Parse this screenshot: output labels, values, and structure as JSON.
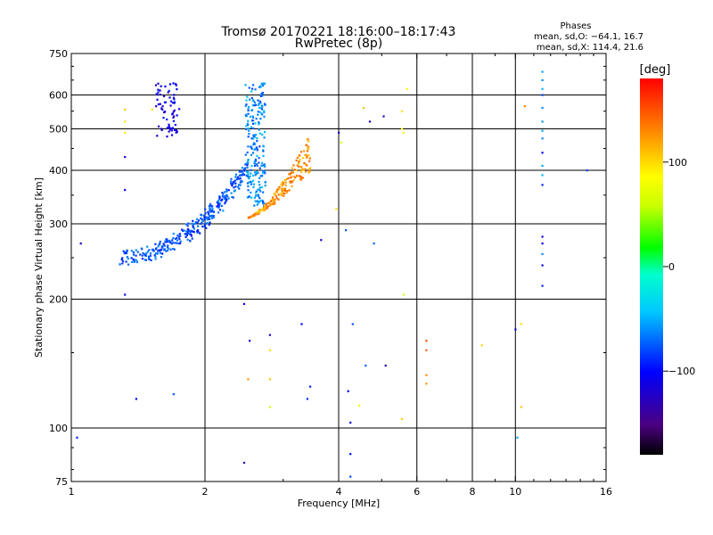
{
  "chart_data": {
    "type": "scatter",
    "title": "Tromsø 20170221 18:16:00–18:17:43",
    "subtitle": "RwPretec (8p)",
    "xlabel": "Frequency [MHz]",
    "ylabel": "Stationary phase Virtual Height [km]",
    "xscale": "log",
    "yscale": "log",
    "xlim": [
      1,
      16
    ],
    "ylim": [
      75,
      750
    ],
    "x_ticks": [
      1,
      2,
      4,
      6,
      8,
      10,
      16
    ],
    "x_tick_labels": [
      "1",
      "2",
      "4",
      "6",
      "8",
      "10",
      "16"
    ],
    "x_gridlines": [
      2,
      4,
      6,
      8,
      10
    ],
    "y_ticks": [
      75,
      100,
      200,
      300,
      400,
      500,
      600,
      750
    ],
    "y_tick_labels": [
      "75",
      "100",
      "200",
      "300",
      "400",
      "500",
      "600",
      "750"
    ],
    "y_gridlines": [
      100,
      200,
      300,
      400,
      500,
      600
    ],
    "stats": {
      "heading": "Phases",
      "line_o": "mean, sd,O: −64.1, 16.7",
      "line_x": "mean, sd,X: 114.4, 21.6"
    },
    "colorbar": {
      "label": "[deg]",
      "range": [
        -180,
        180
      ],
      "ticks": [
        100,
        0,
        -100
      ],
      "tick_labels": [
        "100",
        "0",
        "−100"
      ]
    },
    "traces": [
      {
        "name": "O-mode lower branch",
        "x_range": [
          1.3,
          2.45
        ],
        "h_range": [
          250,
          400
        ],
        "phase": -75,
        "count": 320
      },
      {
        "name": "O-mode upper branch",
        "x_range": [
          2.45,
          2.75
        ],
        "h_range": [
          330,
          640
        ],
        "phase": -60,
        "count": 220
      },
      {
        "name": "O-mode spread F2 cluster",
        "x_range": [
          1.55,
          1.75
        ],
        "h_range": [
          480,
          640
        ],
        "phase": -110,
        "count": 70
      },
      {
        "name": "X-mode trace",
        "x_range": [
          2.5,
          3.45
        ],
        "h_range": [
          310,
          490
        ],
        "phase": 125,
        "count": 200
      }
    ],
    "sparse_points": [
      {
        "x": 1.05,
        "y": 270,
        "phase": -120
      },
      {
        "x": 1.03,
        "y": 95,
        "phase": -90
      },
      {
        "x": 1.32,
        "y": 555,
        "phase": 110
      },
      {
        "x": 1.32,
        "y": 520,
        "phase": 100
      },
      {
        "x": 1.32,
        "y": 490,
        "phase": 95
      },
      {
        "x": 1.32,
        "y": 430,
        "phase": -120
      },
      {
        "x": 1.32,
        "y": 360,
        "phase": -110
      },
      {
        "x": 1.32,
        "y": 205,
        "phase": -100
      },
      {
        "x": 1.4,
        "y": 117,
        "phase": -95
      },
      {
        "x": 1.7,
        "y": 120,
        "phase": -70
      },
      {
        "x": 1.52,
        "y": 555,
        "phase": 100
      },
      {
        "x": 2.45,
        "y": 195,
        "phase": -110
      },
      {
        "x": 2.45,
        "y": 83,
        "phase": -130
      },
      {
        "x": 2.5,
        "y": 130,
        "phase": 125
      },
      {
        "x": 2.52,
        "y": 160,
        "phase": -115
      },
      {
        "x": 2.8,
        "y": 165,
        "phase": -125
      },
      {
        "x": 2.8,
        "y": 152,
        "phase": 100
      },
      {
        "x": 2.8,
        "y": 130,
        "phase": 110
      },
      {
        "x": 2.8,
        "y": 112,
        "phase": 70
      },
      {
        "x": 3.3,
        "y": 175,
        "phase": -100
      },
      {
        "x": 3.45,
        "y": 125,
        "phase": -90
      },
      {
        "x": 3.4,
        "y": 117,
        "phase": -85
      },
      {
        "x": 3.65,
        "y": 275,
        "phase": -120
      },
      {
        "x": 4.0,
        "y": 490,
        "phase": -120
      },
      {
        "x": 4.05,
        "y": 465,
        "phase": 60
      },
      {
        "x": 3.95,
        "y": 325,
        "phase": 100
      },
      {
        "x": 4.15,
        "y": 290,
        "phase": -75
      },
      {
        "x": 4.2,
        "y": 122,
        "phase": -105
      },
      {
        "x": 4.25,
        "y": 103,
        "phase": -110
      },
      {
        "x": 4.25,
        "y": 87,
        "phase": -95
      },
      {
        "x": 4.25,
        "y": 77,
        "phase": -80
      },
      {
        "x": 4.3,
        "y": 175,
        "phase": -75
      },
      {
        "x": 4.45,
        "y": 113,
        "phase": 95
      },
      {
        "x": 4.6,
        "y": 140,
        "phase": -70
      },
      {
        "x": 4.55,
        "y": 560,
        "phase": 110
      },
      {
        "x": 4.7,
        "y": 520,
        "phase": -120
      },
      {
        "x": 4.8,
        "y": 270,
        "phase": -70
      },
      {
        "x": 5.1,
        "y": 140,
        "phase": -130
      },
      {
        "x": 5.05,
        "y": 535,
        "phase": -125
      },
      {
        "x": 5.55,
        "y": 105,
        "phase": 105
      },
      {
        "x": 5.55,
        "y": 550,
        "phase": 100
      },
      {
        "x": 5.55,
        "y": 500,
        "phase": 90
      },
      {
        "x": 5.6,
        "y": 490,
        "phase": 85
      },
      {
        "x": 5.6,
        "y": 205,
        "phase": 70
      },
      {
        "x": 5.7,
        "y": 620,
        "phase": 95
      },
      {
        "x": 6.3,
        "y": 160,
        "phase": 150
      },
      {
        "x": 6.3,
        "y": 152,
        "phase": 145
      },
      {
        "x": 6.3,
        "y": 133,
        "phase": 130
      },
      {
        "x": 6.3,
        "y": 127,
        "phase": 125
      },
      {
        "x": 8.4,
        "y": 156,
        "phase": 105
      },
      {
        "x": 10.0,
        "y": 170,
        "phase": -110
      },
      {
        "x": 10.3,
        "y": 175,
        "phase": 100
      },
      {
        "x": 10.3,
        "y": 112,
        "phase": 110
      },
      {
        "x": 10.1,
        "y": 95,
        "phase": -50
      },
      {
        "x": 10.5,
        "y": 565,
        "phase": 130
      },
      {
        "x": 11.5,
        "y": 680,
        "phase": -50
      },
      {
        "x": 11.5,
        "y": 650,
        "phase": -60
      },
      {
        "x": 11.5,
        "y": 620,
        "phase": -45
      },
      {
        "x": 11.5,
        "y": 600,
        "phase": -80
      },
      {
        "x": 11.5,
        "y": 560,
        "phase": -60
      },
      {
        "x": 11.5,
        "y": 520,
        "phase": -55
      },
      {
        "x": 11.5,
        "y": 495,
        "phase": -50
      },
      {
        "x": 11.5,
        "y": 475,
        "phase": -60
      },
      {
        "x": 11.5,
        "y": 440,
        "phase": -100
      },
      {
        "x": 11.5,
        "y": 410,
        "phase": -50
      },
      {
        "x": 11.5,
        "y": 390,
        "phase": -45
      },
      {
        "x": 11.5,
        "y": 370,
        "phase": -90
      },
      {
        "x": 11.5,
        "y": 280,
        "phase": -110
      },
      {
        "x": 11.5,
        "y": 270,
        "phase": -100
      },
      {
        "x": 11.5,
        "y": 255,
        "phase": -60
      },
      {
        "x": 11.5,
        "y": 240,
        "phase": -110
      },
      {
        "x": 11.5,
        "y": 215,
        "phase": -90
      },
      {
        "x": 14.5,
        "y": 400,
        "phase": -80
      }
    ]
  }
}
